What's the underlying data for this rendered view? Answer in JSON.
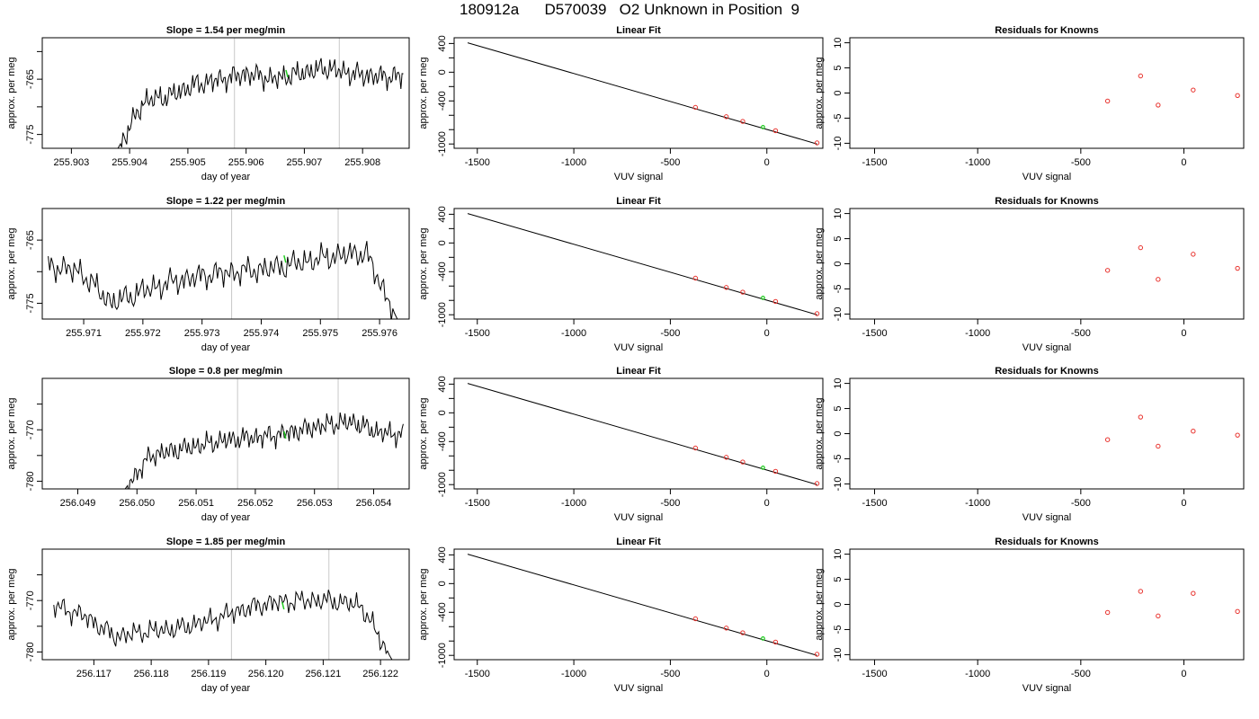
{
  "page": {
    "title": "180912a      D570039   O2 Unknown in Position  9"
  },
  "colors": {
    "trace": "#000000",
    "fit_line": "#000000",
    "knowns": "#e8332e",
    "unknown": "#22cc22",
    "vline": "#c8c8c8"
  },
  "chart_data": [
    {
      "type": "line",
      "row": 1,
      "panel": "time-series",
      "title": "Slope =  1.54  per meg/min",
      "xlabel": "day of year",
      "ylabel": "approx. per meg",
      "xlim": [
        255.9025,
        255.9088
      ],
      "ylim": [
        -777.5,
        -757.5
      ],
      "xticks": [
        255.903,
        255.904,
        255.905,
        255.906,
        255.907,
        255.908
      ],
      "xtick_labels": [
        "255.903",
        "255.904",
        "255.905",
        "255.906",
        "255.907",
        "255.908"
      ],
      "yticks": [
        -775,
        -770,
        -765,
        -760
      ],
      "ytick_labels": [
        "-775",
        "",
        "-765",
        ""
      ],
      "vlines": [
        255.9058,
        255.9076
      ],
      "trace_x_range": [
        255.9038,
        255.9087
      ],
      "trace_levels": [
        -777.5,
        -769.0,
        -768.0,
        -766.0,
        -765.0,
        -764.0,
        -765.0,
        -764.0,
        -763.0,
        -764.0,
        -764.5,
        -764.5
      ],
      "trace_noise": 1.6,
      "unknown_point": {
        "x": 255.9067,
        "y": -764.0
      }
    },
    {
      "type": "line",
      "row": 2,
      "panel": "time-series",
      "title": "Slope =  1.22  per meg/min",
      "xlabel": "day of year",
      "ylabel": "approx. per meg",
      "xlim": [
        255.9703,
        255.9765
      ],
      "ylim": [
        -777.5,
        -760.0
      ],
      "xticks": [
        255.971,
        255.972,
        255.973,
        255.974,
        255.975,
        255.976
      ],
      "xtick_labels": [
        "255.971",
        "255.972",
        "255.973",
        "255.974",
        "255.975",
        "255.976"
      ],
      "yticks": [
        -775,
        -770,
        -765
      ],
      "ytick_labels": [
        "-775",
        "",
        "-765"
      ],
      "vlines": [
        255.9735,
        255.9753
      ],
      "trace_x_range": [
        255.9704,
        255.9763
      ],
      "trace_levels": [
        -769.0,
        -770.0,
        -775.0,
        -773.0,
        -771.5,
        -770.5,
        -770.0,
        -769.5,
        -768.5,
        -767.5,
        -767.0,
        -777.5
      ],
      "trace_noise": 1.6,
      "unknown_point": {
        "x": 255.9744,
        "y": -768.0
      }
    },
    {
      "type": "line",
      "row": 3,
      "panel": "time-series",
      "title": "Slope =  0.8  per meg/min",
      "xlabel": "day of year",
      "ylabel": "approx. per meg",
      "xlim": [
        256.0484,
        256.0546
      ],
      "ylim": [
        -781.5,
        -760.0
      ],
      "xticks": [
        256.049,
        256.05,
        256.051,
        256.052,
        256.053,
        256.054
      ],
      "xtick_labels": [
        "256.049",
        "256.050",
        "256.051",
        "256.052",
        "256.053",
        "256.054"
      ],
      "yticks": [
        -780,
        -775,
        -770,
        -765
      ],
      "ytick_labels": [
        "-780",
        "",
        "-770",
        ""
      ],
      "vlines": [
        256.0517,
        256.0534
      ],
      "trace_x_range": [
        256.0498,
        256.0545
      ],
      "trace_levels": [
        -781.5,
        -775.0,
        -774.0,
        -773.0,
        -772.0,
        -771.5,
        -771.0,
        -770.0,
        -769.0,
        -768.5,
        -770.5,
        -771.0
      ],
      "trace_noise": 1.6,
      "unknown_point": {
        "x": 256.0525,
        "y": -771.0
      }
    },
    {
      "type": "line",
      "row": 4,
      "panel": "time-series",
      "title": "Slope =  1.85  per meg/min",
      "xlabel": "day of year",
      "ylabel": "approx. per meg",
      "xlim": [
        256.1161,
        256.1225
      ],
      "ylim": [
        -781.5,
        -760.0
      ],
      "xticks": [
        256.117,
        256.118,
        256.119,
        256.12,
        256.121,
        256.122
      ],
      "xtick_labels": [
        "256.117",
        "256.118",
        "256.119",
        "256.120",
        "256.121",
        "256.122"
      ],
      "yticks": [
        -780,
        -775,
        -770,
        -765
      ],
      "ytick_labels": [
        "-780",
        "",
        "-770",
        ""
      ],
      "vlines": [
        256.1194,
        256.1211
      ],
      "trace_x_range": [
        256.1163,
        256.1222
      ],
      "trace_levels": [
        -771.0,
        -773.0,
        -777.0,
        -776.0,
        -775.5,
        -774.0,
        -772.0,
        -770.5,
        -770.0,
        -770.0,
        -771.0,
        -781.5
      ],
      "trace_noise": 1.6,
      "unknown_point": {
        "x": 256.1203,
        "y": -771.0
      }
    },
    {
      "type": "scatter",
      "row": 1,
      "panel": "linear-fit",
      "title": "Linear Fit",
      "xlabel": "VUV signal",
      "ylabel": "approx. per meg",
      "xlim": [
        -1620,
        290
      ],
      "ylim": [
        -1060,
        480
      ],
      "xticks": [
        -1500,
        -1000,
        -500,
        0
      ],
      "xtick_labels": [
        "-1500",
        "-1000",
        "-500",
        "0"
      ],
      "yticks": [
        400,
        200,
        0,
        -200,
        -400,
        -600,
        -800,
        -1000
      ],
      "ytick_labels": [
        "400",
        "",
        "0",
        "",
        "-400",
        "",
        "",
        "-1000"
      ],
      "fit_line": [
        [
          -1550,
          410
        ],
        [
          260,
          -1000
        ]
      ],
      "knowns": [
        {
          "x": -370,
          "y": -490
        },
        {
          "x": -210,
          "y": -620
        },
        {
          "x": -125,
          "y": -685
        },
        {
          "x": 45,
          "y": -815
        },
        {
          "x": 260,
          "y": -985
        }
      ],
      "unknown": {
        "x": -20,
        "y": -765
      }
    },
    {
      "type": "scatter",
      "row": 2,
      "panel": "linear-fit",
      "title": "Linear Fit",
      "xlabel": "VUV signal",
      "ylabel": "approx. per meg",
      "xlim": [
        -1620,
        290
      ],
      "ylim": [
        -1060,
        480
      ],
      "xticks": [
        -1500,
        -1000,
        -500,
        0
      ],
      "xtick_labels": [
        "-1500",
        "-1000",
        "-500",
        "0"
      ],
      "yticks": [
        400,
        200,
        0,
        -200,
        -400,
        -600,
        -800,
        -1000
      ],
      "ytick_labels": [
        "400",
        "",
        "0",
        "",
        "-400",
        "",
        "",
        "-1000"
      ],
      "fit_line": [
        [
          -1550,
          410
        ],
        [
          260,
          -1000
        ]
      ],
      "knowns": [
        {
          "x": -370,
          "y": -490
        },
        {
          "x": -210,
          "y": -620
        },
        {
          "x": -125,
          "y": -685
        },
        {
          "x": 45,
          "y": -815
        },
        {
          "x": 260,
          "y": -985
        }
      ],
      "unknown": {
        "x": -20,
        "y": -765
      }
    },
    {
      "type": "scatter",
      "row": 3,
      "panel": "linear-fit",
      "title": "Linear Fit",
      "xlabel": "VUV signal",
      "ylabel": "approx. per meg",
      "xlim": [
        -1620,
        290
      ],
      "ylim": [
        -1060,
        480
      ],
      "xticks": [
        -1500,
        -1000,
        -500,
        0
      ],
      "xtick_labels": [
        "-1500",
        "-1000",
        "-500",
        "0"
      ],
      "yticks": [
        400,
        200,
        0,
        -200,
        -400,
        -600,
        -800,
        -1000
      ],
      "ytick_labels": [
        "400",
        "",
        "0",
        "",
        "-400",
        "",
        "",
        "-1000"
      ],
      "fit_line": [
        [
          -1550,
          410
        ],
        [
          260,
          -1000
        ]
      ],
      "knowns": [
        {
          "x": -370,
          "y": -490
        },
        {
          "x": -210,
          "y": -620
        },
        {
          "x": -125,
          "y": -685
        },
        {
          "x": 45,
          "y": -815
        },
        {
          "x": 260,
          "y": -985
        }
      ],
      "unknown": {
        "x": -20,
        "y": -765
      }
    },
    {
      "type": "scatter",
      "row": 4,
      "panel": "linear-fit",
      "title": "Linear Fit",
      "xlabel": "VUV signal",
      "ylabel": "approx. per meg",
      "xlim": [
        -1620,
        290
      ],
      "ylim": [
        -1060,
        480
      ],
      "xticks": [
        -1500,
        -1000,
        -500,
        0
      ],
      "xtick_labels": [
        "-1500",
        "-1000",
        "-500",
        "0"
      ],
      "yticks": [
        400,
        200,
        0,
        -200,
        -400,
        -600,
        -800,
        -1000
      ],
      "ytick_labels": [
        "400",
        "",
        "0",
        "",
        "-400",
        "",
        "",
        "-1000"
      ],
      "fit_line": [
        [
          -1550,
          410
        ],
        [
          260,
          -1000
        ]
      ],
      "knowns": [
        {
          "x": -370,
          "y": -490
        },
        {
          "x": -210,
          "y": -620
        },
        {
          "x": -125,
          "y": -685
        },
        {
          "x": 45,
          "y": -815
        },
        {
          "x": 260,
          "y": -985
        }
      ],
      "unknown": {
        "x": -20,
        "y": -765
      }
    },
    {
      "type": "scatter",
      "row": 1,
      "panel": "residuals",
      "title": "Residuals for Knowns",
      "xlabel": "VUV signal",
      "ylabel": "approx. per meg",
      "xlim": [
        -1620,
        290
      ],
      "ylim": [
        -11,
        11
      ],
      "xticks": [
        -1500,
        -1000,
        -500,
        0
      ],
      "xtick_labels": [
        "-1500",
        "-1000",
        "-500",
        "0"
      ],
      "yticks": [
        10,
        5,
        0,
        -5,
        -10
      ],
      "ytick_labels": [
        "10",
        "5",
        "0",
        "-5",
        "-10"
      ],
      "points": [
        {
          "x": -370,
          "y": -1.6
        },
        {
          "x": -210,
          "y": 3.4
        },
        {
          "x": -125,
          "y": -2.4
        },
        {
          "x": 45,
          "y": 0.6
        },
        {
          "x": 260,
          "y": -0.5
        }
      ]
    },
    {
      "type": "scatter",
      "row": 2,
      "panel": "residuals",
      "title": "Residuals for Knowns",
      "xlabel": "VUV signal",
      "ylabel": "approx. per meg",
      "xlim": [
        -1620,
        290
      ],
      "ylim": [
        -11,
        11
      ],
      "xticks": [
        -1500,
        -1000,
        -500,
        0
      ],
      "xtick_labels": [
        "-1500",
        "-1000",
        "-500",
        "0"
      ],
      "yticks": [
        10,
        5,
        0,
        -5,
        -10
      ],
      "ytick_labels": [
        "10",
        "5",
        "0",
        "-5",
        "-10"
      ],
      "points": [
        {
          "x": -370,
          "y": -1.3
        },
        {
          "x": -210,
          "y": 3.2
        },
        {
          "x": -125,
          "y": -3.1
        },
        {
          "x": 45,
          "y": 1.9
        },
        {
          "x": 260,
          "y": -0.9
        }
      ]
    },
    {
      "type": "scatter",
      "row": 3,
      "panel": "residuals",
      "title": "Residuals for Knowns",
      "xlabel": "VUV signal",
      "ylabel": "approx. per meg",
      "xlim": [
        -1620,
        290
      ],
      "ylim": [
        -11,
        11
      ],
      "xticks": [
        -1500,
        -1000,
        -500,
        0
      ],
      "xtick_labels": [
        "-1500",
        "-1000",
        "-500",
        "0"
      ],
      "yticks": [
        10,
        5,
        0,
        -5,
        -10
      ],
      "ytick_labels": [
        "10",
        "5",
        "0",
        "-5",
        "-10"
      ],
      "points": [
        {
          "x": -370,
          "y": -1.2
        },
        {
          "x": -210,
          "y": 3.3
        },
        {
          "x": -125,
          "y": -2.5
        },
        {
          "x": 45,
          "y": 0.5
        },
        {
          "x": 260,
          "y": -0.3
        }
      ]
    },
    {
      "type": "scatter",
      "row": 4,
      "panel": "residuals",
      "title": "Residuals for Knowns",
      "xlabel": "VUV signal",
      "ylabel": "approx. per meg",
      "xlim": [
        -1620,
        290
      ],
      "ylim": [
        -11,
        11
      ],
      "xticks": [
        -1500,
        -1000,
        -500,
        0
      ],
      "xtick_labels": [
        "-1500",
        "-1000",
        "-500",
        "0"
      ],
      "yticks": [
        10,
        5,
        0,
        -5,
        -10
      ],
      "ytick_labels": [
        "10",
        "5",
        "0",
        "-5",
        "-10"
      ],
      "points": [
        {
          "x": -370,
          "y": -1.6
        },
        {
          "x": -210,
          "y": 2.6
        },
        {
          "x": -125,
          "y": -2.3
        },
        {
          "x": 45,
          "y": 2.2
        },
        {
          "x": 260,
          "y": -1.4
        }
      ]
    }
  ]
}
